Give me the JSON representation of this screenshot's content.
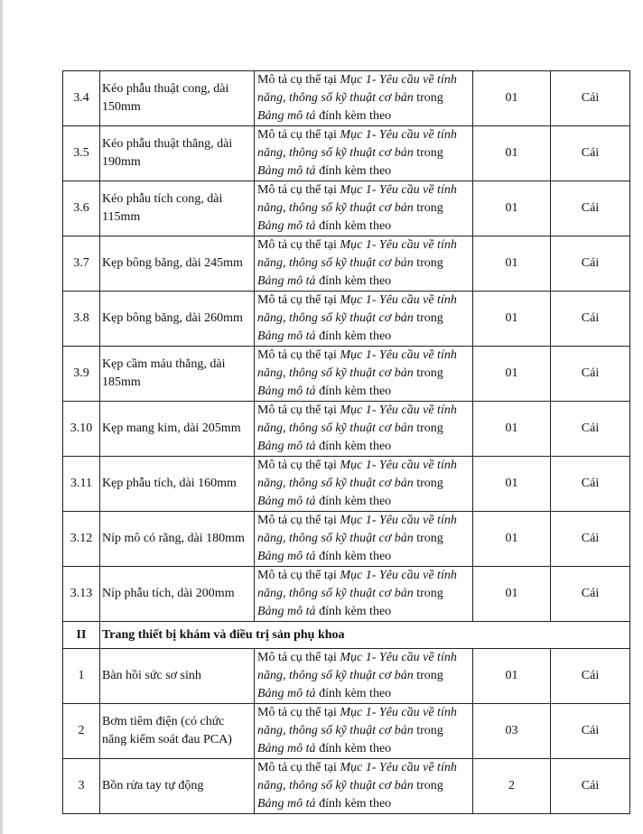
{
  "description": {
    "p1": " Mô tả cụ thể tại ",
    "i1": "Mục 1- Yêu cầu về tính năng, thông số kỹ thuật cơ bản",
    "p2": " trong ",
    "i2": "Bảng mô tả",
    "p3": " đính kèm theo"
  },
  "rows": [
    {
      "type": "item",
      "no": "3.4",
      "name": "Kéo phẫu thuật cong, dài 150mm",
      "qty": "01",
      "unit": "Cái"
    },
    {
      "type": "item",
      "no": "3.5",
      "name": "Kéo phẫu thuật thẳng, dài 190mm",
      "qty": "01",
      "unit": "Cái"
    },
    {
      "type": "item",
      "no": "3.6",
      "name": "Kéo phẫu tích cong, dài 115mm",
      "qty": "01",
      "unit": "Cái"
    },
    {
      "type": "item",
      "no": "3.7",
      "name": "Kẹp bông băng, dài 245mm",
      "qty": "01",
      "unit": "Cái"
    },
    {
      "type": "item",
      "no": "3.8",
      "name": "Kẹp bông băng, dài 260mm",
      "qty": "01",
      "unit": "Cái"
    },
    {
      "type": "item",
      "no": "3.9",
      "name": "Kẹp cầm máu thẳng, dài 185mm",
      "qty": "01",
      "unit": "Cái"
    },
    {
      "type": "item",
      "no": "3.10",
      "name": "Kẹp mang kim, dài 205mm",
      "qty": "01",
      "unit": "Cái"
    },
    {
      "type": "item",
      "no": "3.11",
      "name": "Kẹp phẫu tích, dài 160mm",
      "qty": "01",
      "unit": "Cái"
    },
    {
      "type": "item",
      "no": "3.12",
      "name": "Níp mô có răng, dài 180mm",
      "qty": "01",
      "unit": "Cái"
    },
    {
      "type": "item",
      "no": "3.13",
      "name": "Níp phẫu tích, dài 200mm",
      "qty": "01",
      "unit": "Cái"
    },
    {
      "type": "section",
      "no": "II",
      "name": "Trang thiết bị khám và điều trị sản phụ khoa"
    },
    {
      "type": "item",
      "no": "1",
      "name": "Bàn hồi sức sơ sinh",
      "qty": "01",
      "unit": "Cái"
    },
    {
      "type": "item",
      "no": "2",
      "name": "Bơm tiêm điện (có chức năng kiểm soát đau PCA)",
      "qty": "03",
      "unit": "Cái"
    },
    {
      "type": "item",
      "no": "3",
      "name": "Bồn rửa tay tự động",
      "qty": "2",
      "unit": "Cái"
    }
  ]
}
